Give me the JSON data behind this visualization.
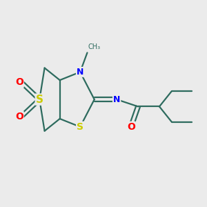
{
  "bg_color": "#ebebeb",
  "bond_color": "#2d6b5e",
  "s_color": "#cccc00",
  "o_color": "#ff0000",
  "n_color": "#0000ff",
  "bond_width": 1.6,
  "font_size": 9,
  "figsize": [
    3.0,
    3.0
  ],
  "dpi": 100,
  "xlim": [
    0,
    10
  ],
  "ylim": [
    0,
    10
  ]
}
